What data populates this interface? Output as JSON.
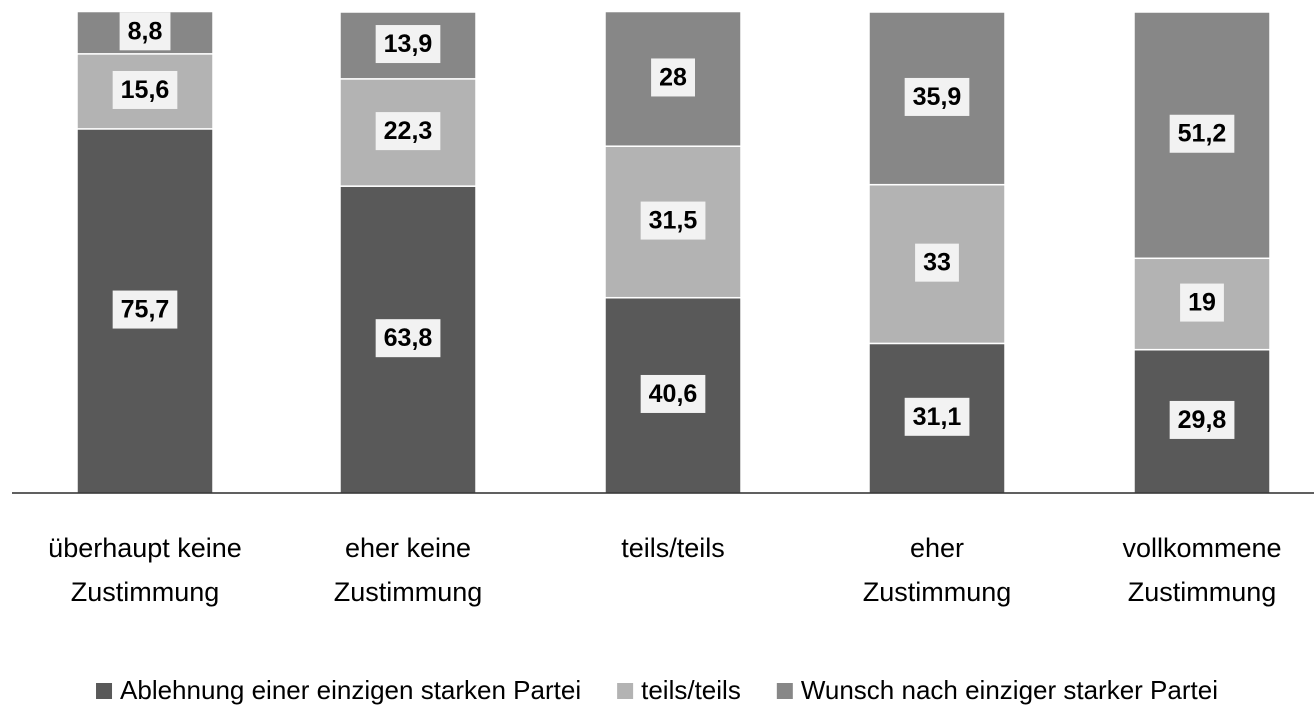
{
  "chart_data": {
    "type": "stacked-bar",
    "categories": [
      "überhaupt keine Zustimmung",
      "eher keine Zustimmung",
      "teils/teils",
      "eher Zustimmung",
      "vollkommene Zustimmung"
    ],
    "series": [
      {
        "name": "Ablehnung einer einzigen starken Partei",
        "color": "#595959",
        "values": [
          75.7,
          63.8,
          40.6,
          31.1,
          29.8
        ],
        "value_labels": [
          "75,7",
          "63,8",
          "40,6",
          "31,1",
          "29,8"
        ]
      },
      {
        "name": "teils/teils",
        "color": "#b3b3b3",
        "values": [
          15.6,
          22.3,
          31.5,
          33,
          19
        ],
        "value_labels": [
          "15,6",
          "22,3",
          "31,5",
          "33",
          "19"
        ]
      },
      {
        "name": "Wunsch nach einziger starker Partei",
        "color": "#878787",
        "values": [
          8.8,
          13.9,
          28,
          35.9,
          51.2
        ],
        "value_labels": [
          "8,8",
          "13,9",
          "28",
          "35,9",
          "51,2"
        ]
      }
    ],
    "ylim": [
      0,
      100
    ],
    "legend": "bottom"
  }
}
